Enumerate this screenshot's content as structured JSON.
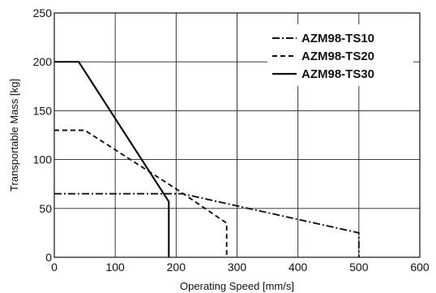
{
  "chart_data": {
    "type": "line",
    "xlabel": "Operating Speed [mm/s]",
    "ylabel": "Transportable Mass [kg]",
    "xlim": [
      0,
      600
    ],
    "ylim": [
      0,
      250
    ],
    "xticks": [
      0,
      100,
      200,
      300,
      400,
      500,
      600
    ],
    "yticks": [
      0,
      50,
      100,
      150,
      200,
      250
    ],
    "grid": true,
    "legend_position": "top-right",
    "series": [
      {
        "name": "AZM98-TS10",
        "style": "dash-dot",
        "color": "#111111",
        "points": [
          [
            0,
            65
          ],
          [
            210,
            65
          ],
          [
            500,
            25
          ],
          [
            500,
            0
          ]
        ]
      },
      {
        "name": "AZM98-TS20",
        "style": "dashed",
        "color": "#111111",
        "points": [
          [
            0,
            130
          ],
          [
            50,
            130
          ],
          [
            200,
            70
          ],
          [
            283,
            35
          ],
          [
            283,
            0
          ]
        ]
      },
      {
        "name": "AZM98-TS30",
        "style": "solid",
        "color": "#111111",
        "points": [
          [
            0,
            200
          ],
          [
            40,
            200
          ],
          [
            188,
            57
          ],
          [
            188,
            0
          ]
        ]
      }
    ]
  }
}
